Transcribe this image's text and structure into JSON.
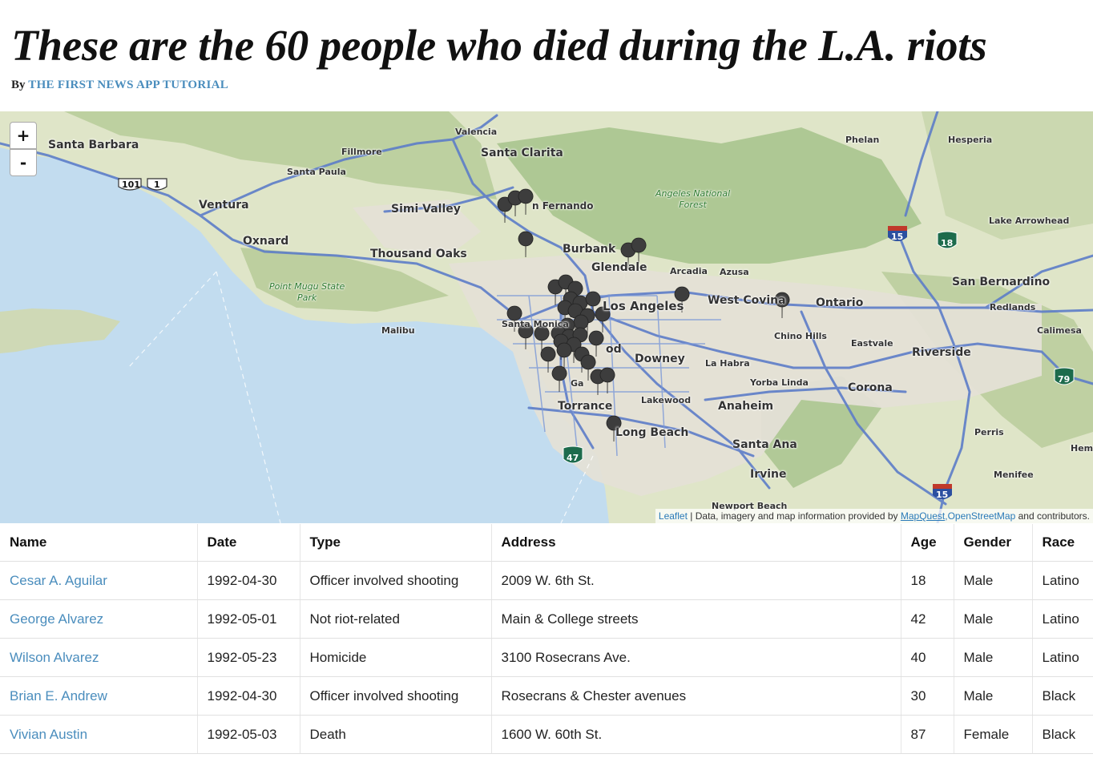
{
  "page": {
    "headline": "These are the 60 people who died during the L.A. riots",
    "byline_prefix": "By",
    "byline_link": "The First News App Tutorial"
  },
  "map": {
    "zoom_in": "+",
    "zoom_out": "-",
    "labels": {
      "santa_barbara": "Santa Barbara",
      "valencia": "Valencia",
      "santa_clarita": "Santa Clarita",
      "fillmore": "Fillmore",
      "santa_paula": "Santa Paula",
      "ventura": "Ventura",
      "oxnard": "Oxnard",
      "simi_valley": "Simi Valley",
      "san_fernando": "n Fernando",
      "angeles_forest": "Angeles National\nForest",
      "thousand_oaks": "Thousand Oaks",
      "burbank": "Burbank",
      "glendale": "Glendale",
      "arcadia": "Arcadia",
      "azusa": "Azusa",
      "point_mugu": "Point Mugu State\nPark",
      "los_angeles": "Los Angeles",
      "west_covina": "West Covina",
      "ontario": "Ontario",
      "malibu": "Malibu",
      "santa_monica": "Santa Monica",
      "chino_hills": "Chino Hills",
      "eastvale": "Eastvale",
      "downey": "Downey",
      "la_habra": "La Habra",
      "yorba_linda": "Yorba Linda",
      "corona": "Corona",
      "torrance": "Torrance",
      "lakewood": "Lakewood",
      "anaheim": "Anaheim",
      "long_beach": "Long Beach",
      "santa_ana": "Santa Ana",
      "irvine": "Irvine",
      "newport_beach": "Newport Beach",
      "phelan": "Phelan",
      "hesperia": "Hesperia",
      "lake_arrowhead": "Lake Arrowhead",
      "san_bernardino": "San Bernardino",
      "redlands": "Redlands",
      "calimesa": "Calimesa",
      "riverside": "Riverside",
      "perris": "Perris",
      "menifee": "Menifee",
      "hemet": "Hem",
      "gardena": "Ga",
      "inglewood": "od"
    },
    "shields": {
      "us101": "101",
      "ca1": "1",
      "i15_north": "15",
      "i15_south": "15",
      "ca18": "18",
      "ca79": "79",
      "ca47": "47"
    },
    "attribution": {
      "leaflet": "Leaflet",
      "separator": " | Data, imagery and map information provided by ",
      "mapquest": "MapQuest",
      "comma": ",",
      "osm": "OpenStreetMap",
      "suffix": " and contributors."
    },
    "colors": {
      "ocean": "#c2dcef",
      "land": "#dfe5c8",
      "mountains": "#a9c48e",
      "freeway": "#5d7dc8",
      "urban": "#e4e0d6",
      "marker": "#3d3d3d"
    }
  },
  "table": {
    "columns": [
      "Name",
      "Date",
      "Type",
      "Address",
      "Age",
      "Gender",
      "Race"
    ],
    "rows": [
      {
        "name": "Cesar A. Aguilar",
        "date": "1992-04-30",
        "type": "Officer involved shooting",
        "address": "2009 W. 6th St.",
        "age": "18",
        "gender": "Male",
        "race": "Latino"
      },
      {
        "name": "George Alvarez",
        "date": "1992-05-01",
        "type": "Not riot-related",
        "address": "Main & College streets",
        "age": "42",
        "gender": "Male",
        "race": "Latino"
      },
      {
        "name": "Wilson Alvarez",
        "date": "1992-05-23",
        "type": "Homicide",
        "address": "3100 Rosecrans Ave.",
        "age": "40",
        "gender": "Male",
        "race": "Latino"
      },
      {
        "name": "Brian E. Andrew",
        "date": "1992-04-30",
        "type": "Officer involved shooting",
        "address": "Rosecrans & Chester avenues",
        "age": "30",
        "gender": "Male",
        "race": "Black"
      },
      {
        "name": "Vivian Austin",
        "date": "1992-05-03",
        "type": "Death",
        "address": "1600 W. 60th St.",
        "age": "87",
        "gender": "Female",
        "race": "Black"
      }
    ]
  }
}
